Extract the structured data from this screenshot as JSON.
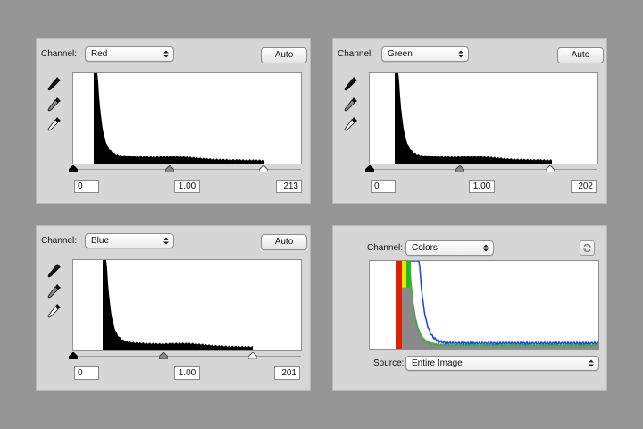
{
  "channel_label": "Channel:",
  "auto_label": "Auto",
  "source_label": "Source:",
  "panels": [
    {
      "channel": "Red",
      "black_input": "0",
      "gamma": "1.00",
      "white_input": "213",
      "peak": 0.09,
      "gamma_pos": 0.42,
      "white_pos": 0.84
    },
    {
      "channel": "Green",
      "black_input": "0",
      "gamma": "1.00",
      "white_input": "202",
      "peak": 0.11,
      "gamma_pos": 0.4,
      "white_pos": 0.8
    },
    {
      "channel": "Blue",
      "black_input": "0",
      "gamma": "1.00",
      "white_input": "201",
      "peak": 0.13,
      "gamma_pos": 0.4,
      "white_pos": 0.79
    }
  ],
  "colors_panel": {
    "channel": "Colors",
    "source": "Entire Image",
    "colors": {
      "red": "#dd2200",
      "yellow": "#e8e800",
      "green": "#22bb22",
      "blue": "#1a3cff",
      "gray": "#8a8a8a"
    }
  },
  "icons": {
    "black_eyedropper": "eyedropper-black-icon",
    "gray_eyedropper": "eyedropper-gray-icon",
    "white_eyedropper": "eyedropper-white-icon",
    "refresh": "refresh-icon"
  }
}
